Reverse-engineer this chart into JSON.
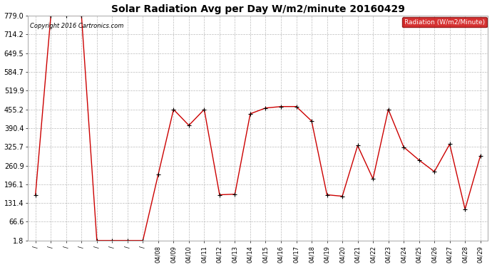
{
  "title": "Solar Radiation Avg per Day W/m2/minute 20160429",
  "copyright_text": "Copyright 2016 Cartronics.com",
  "legend_label": "Radiation (W/m2/Minute)",
  "x_labels": [
    "/",
    "/",
    "/",
    "/",
    "/",
    "/",
    "/",
    "/",
    "04/08",
    "04/09",
    "04/10",
    "04/11",
    "04/12",
    "04/13",
    "04/14",
    "04/15",
    "04/16",
    "04/17",
    "04/18",
    "04/19",
    "04/20",
    "04/21",
    "04/22",
    "04/23",
    "04/24",
    "04/25",
    "04/26",
    "04/27",
    "04/28",
    "04/29"
  ],
  "yticks": [
    1.8,
    66.6,
    131.4,
    196.1,
    260.9,
    325.7,
    390.4,
    455.2,
    519.9,
    584.7,
    649.5,
    714.2,
    779.0
  ],
  "ymin": 1.8,
  "ymax": 779.0,
  "series_y": [
    160,
    779,
    779,
    779,
    1.8,
    1.8,
    1.8,
    1.8,
    230,
    455,
    400,
    455,
    160,
    162,
    440,
    460,
    465,
    465,
    415,
    160,
    155,
    330,
    215,
    455,
    325,
    280,
    240,
    335,
    110,
    295
  ],
  "line_color": "#cc0000",
  "marker_color": "#000000",
  "bg_color": "#ffffff",
  "grid_color": "#bbbbbb",
  "title_fontsize": 10,
  "axis_fontsize": 7,
  "legend_bg": "#cc0000",
  "legend_text_color": "#ffffff"
}
